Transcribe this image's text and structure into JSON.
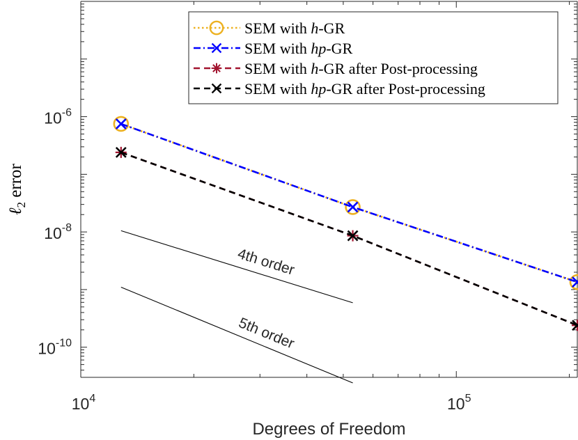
{
  "chart_data": {
    "type": "line",
    "x_scale": "log",
    "y_scale": "log",
    "xlim": [
      10000,
      210000
    ],
    "ylim": [
      3e-11,
      0.0001
    ],
    "xlabel": "Degrees of Freedom",
    "ylabel": {
      "symbol": "ℓ",
      "subscript": "2",
      "text": "error"
    },
    "x_ticks": [
      {
        "value": 10000,
        "base": "10",
        "exp": "4"
      },
      {
        "value": 100000,
        "base": "10",
        "exp": "5"
      }
    ],
    "y_ticks": [
      {
        "value": 1e-06,
        "base": "10",
        "exp": "-6"
      },
      {
        "value": 1e-08,
        "base": "10",
        "exp": "-8"
      },
      {
        "value": 1e-10,
        "base": "10",
        "exp": "-10"
      }
    ],
    "legend_position": "top-right",
    "series": [
      {
        "name": "SEM with h-GR",
        "legend": {
          "pre": "SEM with ",
          "math": "h",
          "post": "-GR"
        },
        "color": "#EDB120",
        "line": "dotted",
        "marker": "circle",
        "x": [
          12800,
          53000,
          210000
        ],
        "y": [
          7.5e-07,
          2.7e-08,
          1.35e-09
        ]
      },
      {
        "name": "SEM with hp-GR",
        "legend": {
          "pre": "SEM with ",
          "math": "hp",
          "post": "-GR"
        },
        "color": "#0000FF",
        "line": "dashdot",
        "marker": "x",
        "x": [
          12800,
          53000,
          210000
        ],
        "y": [
          7.5e-07,
          2.7e-08,
          1.35e-09
        ]
      },
      {
        "name": "SEM with h-GR after Post-processing",
        "legend": {
          "pre": "SEM with ",
          "math": "h",
          "post": "-GR after Post-processing"
        },
        "color": "#A2142F",
        "line": "dashed",
        "marker": "asterisk",
        "x": [
          12800,
          53000,
          210000
        ],
        "y": [
          2.4e-07,
          8.6e-09,
          2.4e-10
        ]
      },
      {
        "name": "SEM with hp-GR after Post-processing",
        "legend": {
          "pre": "SEM with ",
          "math": "hp",
          "post": "-GR after Post-processing"
        },
        "color": "#000000",
        "line": "dashed",
        "marker": "x",
        "x": [
          12800,
          53000,
          210000
        ],
        "y": [
          2.4e-07,
          8.6e-09,
          2.4e-10
        ]
      }
    ],
    "reference_lines": [
      {
        "label": "4th order",
        "x": [
          12800,
          53000
        ],
        "y": [
          1.05e-08,
          5.9e-10
        ]
      },
      {
        "label": "5th order",
        "x": [
          12800,
          53000
        ],
        "y": [
          1.1e-09,
          2.4e-11
        ]
      }
    ]
  }
}
